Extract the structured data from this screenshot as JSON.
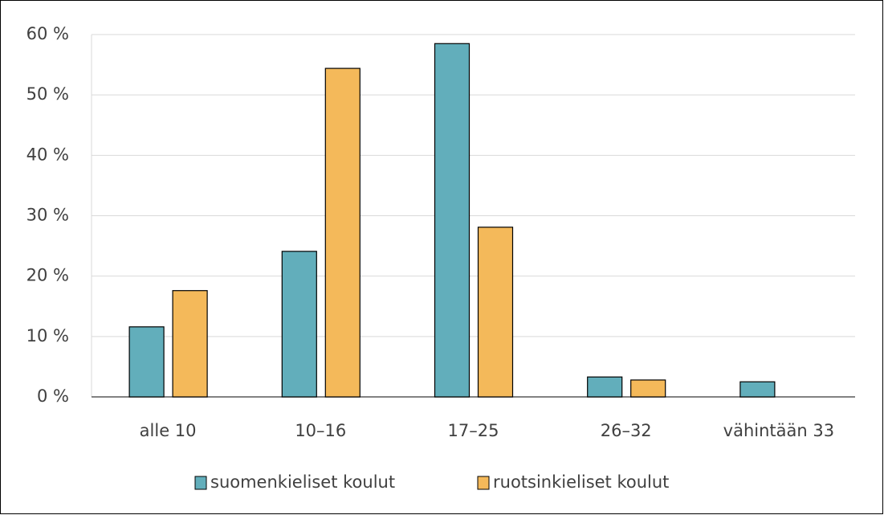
{
  "chart_data": {
    "type": "bar",
    "categories": [
      "alle 10",
      "10–16",
      "17–25",
      "26–32",
      "vähintään 33"
    ],
    "series": [
      {
        "name": "suomenkieliset koulut",
        "color": "#62aebb",
        "values": [
          11.6,
          24.1,
          58.5,
          3.3,
          2.5
        ]
      },
      {
        "name": "ruotsinkieliset koulut",
        "color": "#f4b95a",
        "values": [
          17.6,
          54.4,
          28.1,
          2.8,
          0
        ]
      }
    ],
    "ylim": [
      0,
      60
    ],
    "yticks": [
      {
        "value": 0,
        "label": "0 %"
      },
      {
        "value": 10,
        "label": "10 %"
      },
      {
        "value": 20,
        "label": "20 %"
      },
      {
        "value": 30,
        "label": "30 %"
      },
      {
        "value": 40,
        "label": "40 %"
      },
      {
        "value": 50,
        "label": "50 %"
      },
      {
        "value": 60,
        "label": "60 %"
      }
    ],
    "grid": true,
    "legend": "bottom"
  }
}
